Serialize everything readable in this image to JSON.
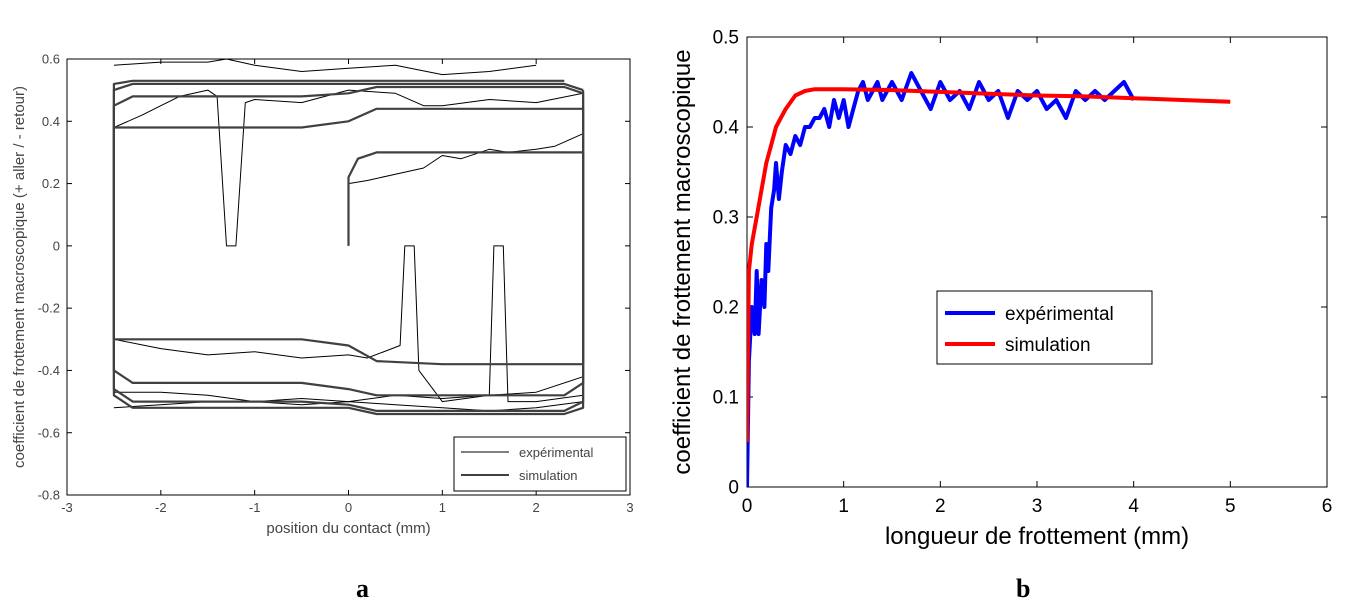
{
  "chart_data": [
    {
      "id": "a",
      "type": "line",
      "xlabel": "position du contact (mm)",
      "ylabel": "coefficient de frottement macroscopique (+ aller / - retour)",
      "xlim": [
        -3,
        3
      ],
      "ylim": [
        -0.8,
        0.6
      ],
      "xticks": [
        "-3",
        "-2",
        "-1",
        "0",
        "1",
        "2",
        "3"
      ],
      "yticks": [
        "0.6",
        "0.4",
        "0.2",
        "0",
        "-0.2",
        "-0.4",
        "-0.6",
        "-0.8"
      ],
      "legend_placement": "bottom-right",
      "grid": false,
      "series": [
        {
          "name": "expérimental",
          "color": "#000000",
          "loops": [
            [
              [
                0,
                0.2
              ],
              [
                0.2,
                0.21
              ],
              [
                0.5,
                0.23
              ],
              [
                0.8,
                0.25
              ],
              [
                1.0,
                0.29
              ],
              [
                1.2,
                0.28
              ],
              [
                1.5,
                0.31
              ],
              [
                1.7,
                0.3
              ],
              [
                2.0,
                0.31
              ],
              [
                2.2,
                0.32
              ],
              [
                2.5,
                0.36
              ]
            ],
            [
              [
                -2.5,
                0.38
              ],
              [
                -2.2,
                0.42
              ],
              [
                -2.0,
                0.45
              ],
              [
                -1.8,
                0.48
              ],
              [
                -1.5,
                0.5
              ],
              [
                -1.4,
                0.48
              ],
              [
                -1.3,
                0.0
              ],
              [
                -1.2,
                0.0
              ],
              [
                -1.1,
                0.46
              ],
              [
                -1.0,
                0.47
              ],
              [
                -0.5,
                0.46
              ],
              [
                0,
                0.5
              ],
              [
                0.5,
                0.49
              ],
              [
                0.8,
                0.45
              ],
              [
                1.0,
                0.45
              ],
              [
                1.5,
                0.47
              ],
              [
                2.0,
                0.46
              ],
              [
                2.5,
                0.49
              ]
            ],
            [
              [
                -2.5,
                0.58
              ],
              [
                -2.0,
                0.59
              ],
              [
                -1.5,
                0.59
              ],
              [
                -1.3,
                0.6
              ],
              [
                -1.0,
                0.58
              ],
              [
                -0.5,
                0.56
              ],
              [
                0,
                0.57
              ],
              [
                0.5,
                0.58
              ],
              [
                1.0,
                0.55
              ],
              [
                1.5,
                0.56
              ],
              [
                2.0,
                0.58
              ]
            ],
            [
              [
                2.5,
                -0.48
              ],
              [
                2.0,
                -0.5
              ],
              [
                1.7,
                -0.5
              ],
              [
                1.65,
                0.0
              ],
              [
                1.55,
                0.0
              ],
              [
                1.5,
                -0.48
              ],
              [
                1.0,
                -0.5
              ],
              [
                0.75,
                -0.4
              ],
              [
                0.7,
                0.0
              ],
              [
                0.6,
                0.0
              ],
              [
                0.55,
                -0.32
              ],
              [
                0.2,
                -0.36
              ],
              [
                0,
                -0.35
              ],
              [
                -0.5,
                -0.36
              ],
              [
                -1.0,
                -0.34
              ],
              [
                -1.5,
                -0.35
              ],
              [
                -2.0,
                -0.33
              ],
              [
                -2.5,
                -0.3
              ]
            ],
            [
              [
                2.5,
                -0.42
              ],
              [
                2.0,
                -0.47
              ],
              [
                1.5,
                -0.48
              ],
              [
                1.0,
                -0.49
              ],
              [
                0.5,
                -0.48
              ],
              [
                0,
                -0.5
              ],
              [
                -0.5,
                -0.49
              ],
              [
                -1.0,
                -0.5
              ],
              [
                -1.5,
                -0.48
              ],
              [
                -2.0,
                -0.47
              ],
              [
                -2.5,
                -0.47
              ]
            ],
            [
              [
                2.5,
                -0.5
              ],
              [
                2.0,
                -0.52
              ],
              [
                1.5,
                -0.53
              ],
              [
                1.0,
                -0.52
              ],
              [
                0.5,
                -0.51
              ],
              [
                0,
                -0.5
              ],
              [
                -0.5,
                -0.51
              ],
              [
                -1.0,
                -0.5
              ],
              [
                -1.5,
                -0.5
              ],
              [
                -2.0,
                -0.51
              ],
              [
                -2.5,
                -0.52
              ]
            ]
          ]
        },
        {
          "name": "simulation",
          "color": "#404040",
          "loops": [
            [
              [
                0,
                0.0
              ],
              [
                0,
                0.22
              ],
              [
                0.1,
                0.28
              ],
              [
                0.3,
                0.3
              ],
              [
                1.0,
                0.3
              ],
              [
                2.5,
                0.3
              ],
              [
                2.5,
                -0.38
              ],
              [
                2.3,
                -0.38
              ],
              [
                1.0,
                -0.38
              ],
              [
                0.3,
                -0.37
              ],
              [
                0,
                -0.32
              ],
              [
                -0.5,
                -0.3
              ],
              [
                -2.5,
                -0.3
              ],
              [
                -2.5,
                0.38
              ],
              [
                -2.3,
                0.38
              ],
              [
                -0.5,
                0.38
              ],
              [
                0,
                0.4
              ],
              [
                0.3,
                0.44
              ],
              [
                2.3,
                0.44
              ],
              [
                2.5,
                0.44
              ]
            ],
            [
              [
                2.5,
                0.44
              ],
              [
                2.5,
                -0.44
              ],
              [
                2.3,
                -0.48
              ],
              [
                1.0,
                -0.48
              ],
              [
                0.3,
                -0.48
              ],
              [
                0,
                -0.46
              ],
              [
                -0.5,
                -0.44
              ],
              [
                -2.3,
                -0.44
              ],
              [
                -2.5,
                -0.4
              ],
              [
                -2.5,
                0.45
              ],
              [
                -2.3,
                0.48
              ],
              [
                -0.5,
                0.48
              ],
              [
                0,
                0.49
              ],
              [
                0.3,
                0.51
              ],
              [
                2.3,
                0.51
              ],
              [
                2.5,
                0.49
              ]
            ],
            [
              [
                2.5,
                0.49
              ],
              [
                2.5,
                -0.5
              ],
              [
                2.3,
                -0.53
              ],
              [
                0.3,
                -0.53
              ],
              [
                0,
                -0.51
              ],
              [
                -0.5,
                -0.5
              ],
              [
                -2.3,
                -0.5
              ],
              [
                -2.5,
                -0.46
              ],
              [
                -2.5,
                0.5
              ],
              [
                -2.3,
                0.52
              ],
              [
                0,
                0.52
              ],
              [
                2.3,
                0.52
              ],
              [
                2.5,
                0.5
              ]
            ],
            [
              [
                2.5,
                0.5
              ],
              [
                2.5,
                -0.52
              ],
              [
                2.3,
                -0.54
              ],
              [
                0.3,
                -0.54
              ],
              [
                0,
                -0.52
              ],
              [
                -2.3,
                -0.52
              ],
              [
                -2.5,
                -0.48
              ],
              [
                -2.5,
                0.52
              ],
              [
                -2.3,
                0.53
              ],
              [
                2.3,
                0.53
              ]
            ]
          ]
        }
      ]
    },
    {
      "id": "b",
      "type": "line",
      "xlabel": "longueur de frottement (mm)",
      "ylabel": "coefficient de frottement macroscopique",
      "xlim": [
        0,
        6
      ],
      "ylim": [
        0,
        0.5
      ],
      "xticks": [
        "0",
        "1",
        "2",
        "3",
        "4",
        "5",
        "6"
      ],
      "yticks": [
        "0.5",
        "0.4",
        "0.3",
        "0.2",
        "0.1",
        "0"
      ],
      "legend_placement": "center-right",
      "grid": false,
      "series": [
        {
          "name": "expérimental",
          "color": "#0000ff",
          "x": [
            0,
            0.02,
            0.05,
            0.08,
            0.1,
            0.12,
            0.15,
            0.18,
            0.2,
            0.22,
            0.25,
            0.28,
            0.3,
            0.33,
            0.36,
            0.4,
            0.45,
            0.5,
            0.55,
            0.6,
            0.65,
            0.7,
            0.75,
            0.8,
            0.85,
            0.9,
            0.95,
            1.0,
            1.05,
            1.1,
            1.15,
            1.2,
            1.25,
            1.3,
            1.35,
            1.4,
            1.5,
            1.6,
            1.7,
            1.8,
            1.9,
            2.0,
            2.1,
            2.2,
            2.3,
            2.4,
            2.5,
            2.6,
            2.7,
            2.8,
            2.9,
            3.0,
            3.1,
            3.2,
            3.3,
            3.4,
            3.5,
            3.6,
            3.7,
            3.8,
            3.9,
            4.0
          ],
          "y": [
            0.0,
            0.14,
            0.2,
            0.17,
            0.24,
            0.17,
            0.23,
            0.2,
            0.27,
            0.24,
            0.31,
            0.33,
            0.36,
            0.32,
            0.35,
            0.38,
            0.37,
            0.39,
            0.38,
            0.4,
            0.4,
            0.41,
            0.41,
            0.42,
            0.4,
            0.43,
            0.41,
            0.43,
            0.4,
            0.42,
            0.44,
            0.45,
            0.43,
            0.44,
            0.45,
            0.43,
            0.45,
            0.43,
            0.46,
            0.44,
            0.42,
            0.45,
            0.43,
            0.44,
            0.42,
            0.45,
            0.43,
            0.44,
            0.41,
            0.44,
            0.43,
            0.44,
            0.42,
            0.43,
            0.41,
            0.44,
            0.43,
            0.44,
            0.43,
            0.44,
            0.45,
            0.43
          ]
        },
        {
          "name": "simulation",
          "color": "#ff0000",
          "x": [
            0,
            0.02,
            0.05,
            0.1,
            0.15,
            0.2,
            0.25,
            0.3,
            0.35,
            0.4,
            0.5,
            0.6,
            0.7,
            0.8,
            1.0,
            1.5,
            2.0,
            2.5,
            3.0,
            3.5,
            4.0,
            4.5,
            5.0
          ],
          "y": [
            0.05,
            0.24,
            0.27,
            0.3,
            0.33,
            0.36,
            0.38,
            0.4,
            0.41,
            0.42,
            0.435,
            0.44,
            0.442,
            0.442,
            0.442,
            0.441,
            0.439,
            0.437,
            0.435,
            0.434,
            0.432,
            0.43,
            0.428
          ]
        }
      ]
    }
  ],
  "panel_labels": [
    "a",
    "b"
  ]
}
